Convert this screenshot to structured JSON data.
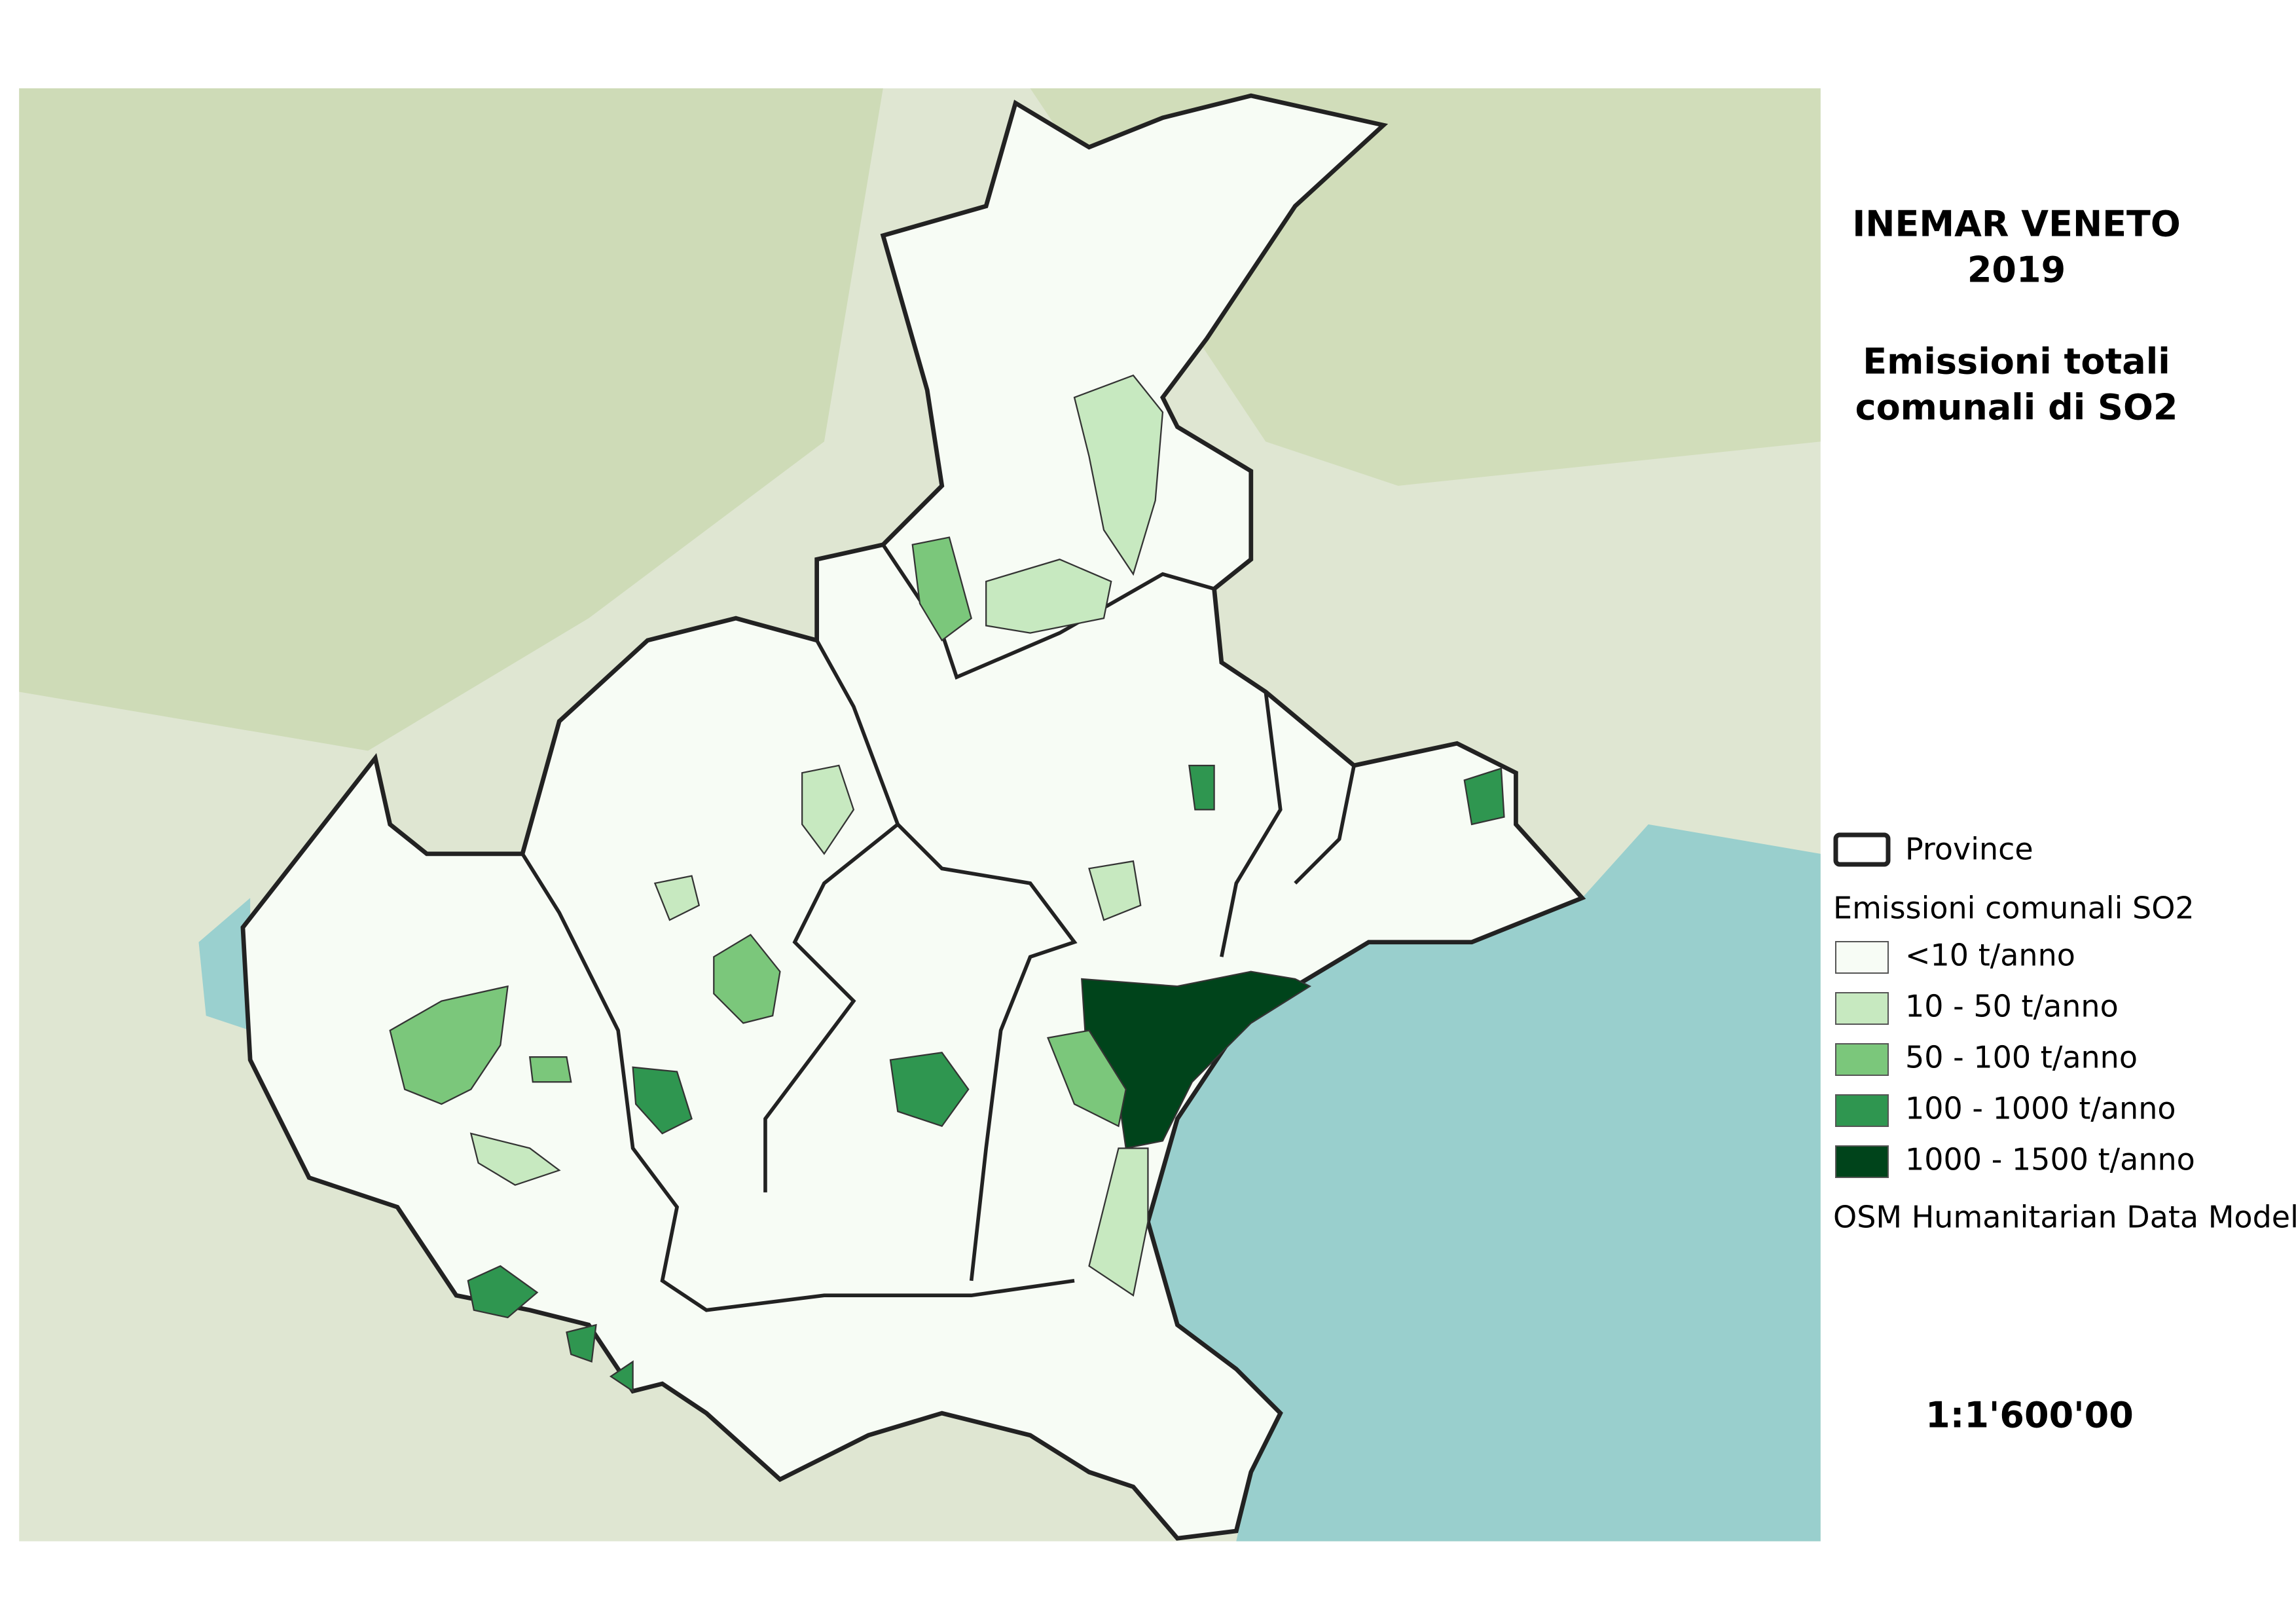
{
  "map": {
    "title": [
      "INEMAR VENETO",
      "2019"
    ],
    "subtitle": [
      "Emissioni totali",
      "comunali di SO2"
    ],
    "legend": {
      "province_label": "Province",
      "title": "Emissioni comunali SO2",
      "classes": [
        {
          "label": "<10 t/anno",
          "color": "#f7fcf5"
        },
        {
          "label": "10 - 50 t/anno",
          "color": "#c7e9c0"
        },
        {
          "label": "50 - 100 t/anno",
          "color": "#7bc77b"
        },
        {
          "label": "100 - 1000 t/anno",
          "color": "#2f9650"
        },
        {
          "label": "1000 - 1500 t/anno",
          "color": "#00441b"
        }
      ],
      "basemap": "OSM Humanitarian Data Model"
    },
    "scale": "1:1'600'00"
  }
}
